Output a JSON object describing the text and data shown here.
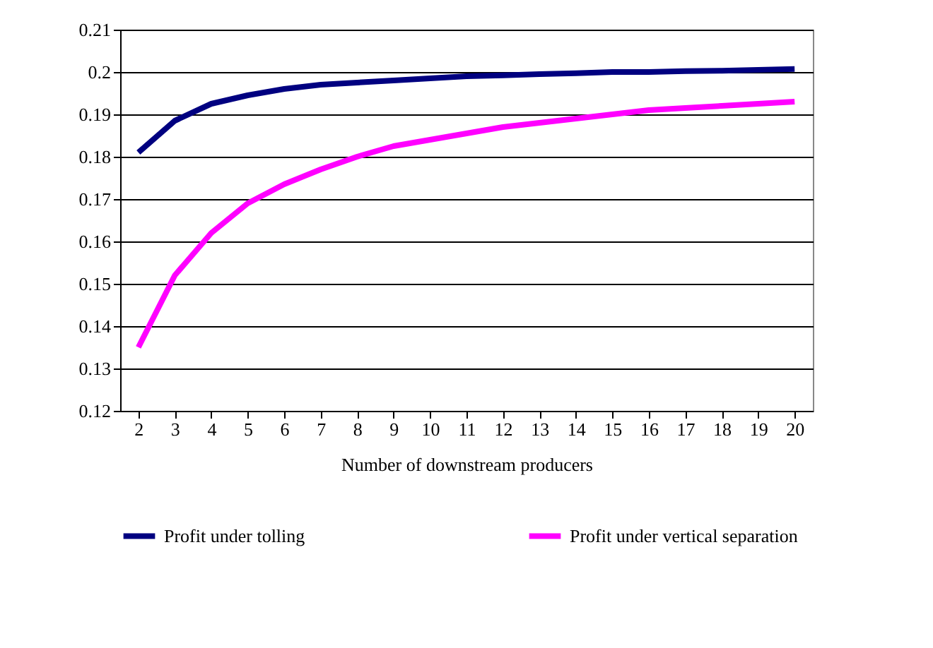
{
  "chart_data": {
    "type": "line",
    "xlabel": "Number of downstream producers",
    "categories": [
      "2",
      "3",
      "4",
      "5",
      "6",
      "7",
      "8",
      "9",
      "10",
      "11",
      "12",
      "13",
      "14",
      "15",
      "16",
      "17",
      "18",
      "19",
      "20"
    ],
    "series": [
      {
        "name": "Profit under tolling",
        "color": "#000080",
        "values": [
          0.181,
          0.1885,
          0.1925,
          0.1945,
          0.196,
          0.197,
          0.1975,
          0.198,
          0.1985,
          0.199,
          0.1992,
          0.1995,
          0.1997,
          0.2,
          0.2,
          0.2002,
          0.2003,
          0.2005,
          0.2007
        ]
      },
      {
        "name": "Profit under vertical separation",
        "color": "#ff00ff",
        "values": [
          0.135,
          0.152,
          0.162,
          0.169,
          0.1735,
          0.177,
          0.18,
          0.1825,
          0.184,
          0.1855,
          0.187,
          0.188,
          0.189,
          0.19,
          0.191,
          0.1915,
          0.192,
          0.1925,
          0.193
        ]
      }
    ],
    "ylim": [
      0.12,
      0.21
    ],
    "yticks": [
      0.12,
      0.13,
      0.14,
      0.15,
      0.16,
      0.17,
      0.18,
      0.19,
      0.2,
      0.21
    ],
    "grid": "y",
    "legend": "bottom",
    "marker": "none",
    "line_style": "solid"
  }
}
